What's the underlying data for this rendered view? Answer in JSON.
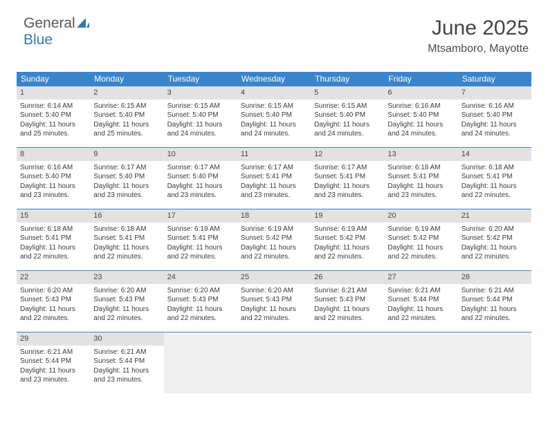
{
  "logo": {
    "text1": "General",
    "text2": "Blue",
    "icon_color": "#2f78bd"
  },
  "title": "June 2025",
  "location": "Mtsamboro, Mayotte",
  "styling": {
    "page_bg": "#ffffff",
    "header_bg": "#3a85c9",
    "header_text": "#ffffff",
    "daynum_bg": "#e2e2e2",
    "empty_bg": "#efefef",
    "row_border": "#3a85c9",
    "body_text": "#3a3a3a",
    "title_color": "#444444",
    "font_family": "Arial",
    "title_fontsize": 30,
    "location_fontsize": 16,
    "header_fontsize": 12,
    "cell_fontsize": 10
  },
  "dow": [
    "Sunday",
    "Monday",
    "Tuesday",
    "Wednesday",
    "Thursday",
    "Friday",
    "Saturday"
  ],
  "weeks": [
    [
      {
        "n": "1",
        "sr": "Sunrise: 6:14 AM",
        "ss": "Sunset: 5:40 PM",
        "dl": "Daylight: 11 hours and 25 minutes."
      },
      {
        "n": "2",
        "sr": "Sunrise: 6:15 AM",
        "ss": "Sunset: 5:40 PM",
        "dl": "Daylight: 11 hours and 25 minutes."
      },
      {
        "n": "3",
        "sr": "Sunrise: 6:15 AM",
        "ss": "Sunset: 5:40 PM",
        "dl": "Daylight: 11 hours and 24 minutes."
      },
      {
        "n": "4",
        "sr": "Sunrise: 6:15 AM",
        "ss": "Sunset: 5:40 PM",
        "dl": "Daylight: 11 hours and 24 minutes."
      },
      {
        "n": "5",
        "sr": "Sunrise: 6:15 AM",
        "ss": "Sunset: 5:40 PM",
        "dl": "Daylight: 11 hours and 24 minutes."
      },
      {
        "n": "6",
        "sr": "Sunrise: 6:16 AM",
        "ss": "Sunset: 5:40 PM",
        "dl": "Daylight: 11 hours and 24 minutes."
      },
      {
        "n": "7",
        "sr": "Sunrise: 6:16 AM",
        "ss": "Sunset: 5:40 PM",
        "dl": "Daylight: 11 hours and 24 minutes."
      }
    ],
    [
      {
        "n": "8",
        "sr": "Sunrise: 6:16 AM",
        "ss": "Sunset: 5:40 PM",
        "dl": "Daylight: 11 hours and 23 minutes."
      },
      {
        "n": "9",
        "sr": "Sunrise: 6:17 AM",
        "ss": "Sunset: 5:40 PM",
        "dl": "Daylight: 11 hours and 23 minutes."
      },
      {
        "n": "10",
        "sr": "Sunrise: 6:17 AM",
        "ss": "Sunset: 5:40 PM",
        "dl": "Daylight: 11 hours and 23 minutes."
      },
      {
        "n": "11",
        "sr": "Sunrise: 6:17 AM",
        "ss": "Sunset: 5:41 PM",
        "dl": "Daylight: 11 hours and 23 minutes."
      },
      {
        "n": "12",
        "sr": "Sunrise: 6:17 AM",
        "ss": "Sunset: 5:41 PM",
        "dl": "Daylight: 11 hours and 23 minutes."
      },
      {
        "n": "13",
        "sr": "Sunrise: 6:18 AM",
        "ss": "Sunset: 5:41 PM",
        "dl": "Daylight: 11 hours and 23 minutes."
      },
      {
        "n": "14",
        "sr": "Sunrise: 6:18 AM",
        "ss": "Sunset: 5:41 PM",
        "dl": "Daylight: 11 hours and 22 minutes."
      }
    ],
    [
      {
        "n": "15",
        "sr": "Sunrise: 6:18 AM",
        "ss": "Sunset: 5:41 PM",
        "dl": "Daylight: 11 hours and 22 minutes."
      },
      {
        "n": "16",
        "sr": "Sunrise: 6:18 AM",
        "ss": "Sunset: 5:41 PM",
        "dl": "Daylight: 11 hours and 22 minutes."
      },
      {
        "n": "17",
        "sr": "Sunrise: 6:19 AM",
        "ss": "Sunset: 5:41 PM",
        "dl": "Daylight: 11 hours and 22 minutes."
      },
      {
        "n": "18",
        "sr": "Sunrise: 6:19 AM",
        "ss": "Sunset: 5:42 PM",
        "dl": "Daylight: 11 hours and 22 minutes."
      },
      {
        "n": "19",
        "sr": "Sunrise: 6:19 AM",
        "ss": "Sunset: 5:42 PM",
        "dl": "Daylight: 11 hours and 22 minutes."
      },
      {
        "n": "20",
        "sr": "Sunrise: 6:19 AM",
        "ss": "Sunset: 5:42 PM",
        "dl": "Daylight: 11 hours and 22 minutes."
      },
      {
        "n": "21",
        "sr": "Sunrise: 6:20 AM",
        "ss": "Sunset: 5:42 PM",
        "dl": "Daylight: 11 hours and 22 minutes."
      }
    ],
    [
      {
        "n": "22",
        "sr": "Sunrise: 6:20 AM",
        "ss": "Sunset: 5:43 PM",
        "dl": "Daylight: 11 hours and 22 minutes."
      },
      {
        "n": "23",
        "sr": "Sunrise: 6:20 AM",
        "ss": "Sunset: 5:43 PM",
        "dl": "Daylight: 11 hours and 22 minutes."
      },
      {
        "n": "24",
        "sr": "Sunrise: 6:20 AM",
        "ss": "Sunset: 5:43 PM",
        "dl": "Daylight: 11 hours and 22 minutes."
      },
      {
        "n": "25",
        "sr": "Sunrise: 6:20 AM",
        "ss": "Sunset: 5:43 PM",
        "dl": "Daylight: 11 hours and 22 minutes."
      },
      {
        "n": "26",
        "sr": "Sunrise: 6:21 AM",
        "ss": "Sunset: 5:43 PM",
        "dl": "Daylight: 11 hours and 22 minutes."
      },
      {
        "n": "27",
        "sr": "Sunrise: 6:21 AM",
        "ss": "Sunset: 5:44 PM",
        "dl": "Daylight: 11 hours and 22 minutes."
      },
      {
        "n": "28",
        "sr": "Sunrise: 6:21 AM",
        "ss": "Sunset: 5:44 PM",
        "dl": "Daylight: 11 hours and 22 minutes."
      }
    ],
    [
      {
        "n": "29",
        "sr": "Sunrise: 6:21 AM",
        "ss": "Sunset: 5:44 PM",
        "dl": "Daylight: 11 hours and 23 minutes."
      },
      {
        "n": "30",
        "sr": "Sunrise: 6:21 AM",
        "ss": "Sunset: 5:44 PM",
        "dl": "Daylight: 11 hours and 23 minutes."
      },
      null,
      null,
      null,
      null,
      null
    ]
  ]
}
